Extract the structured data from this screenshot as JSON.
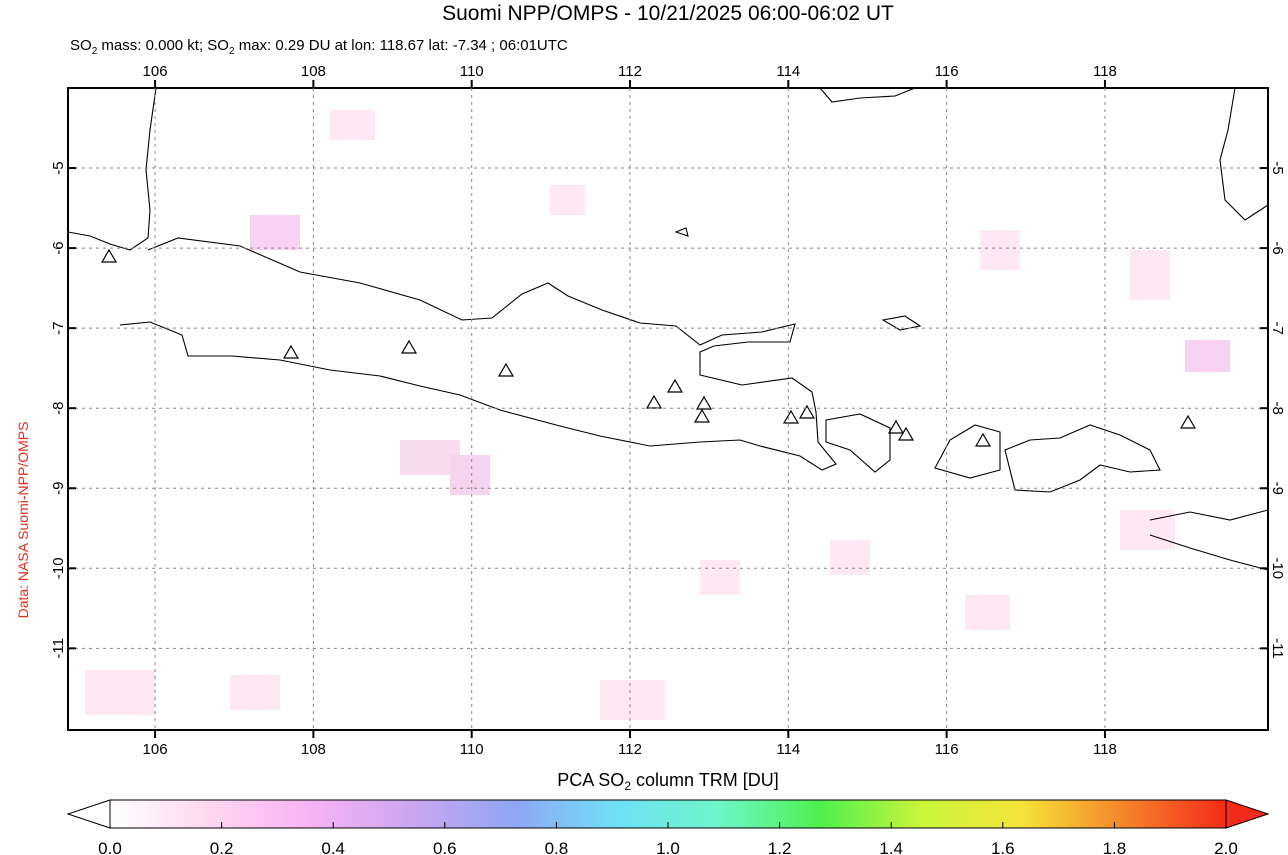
{
  "map": {
    "title": "Suomi NPP/OMPS - 10/21/2025 06:00-06:02 UT",
    "subtitle": [
      "SO",
      "2",
      " mass: 0.000 kt; SO",
      "2",
      " max: 0.29 DU at lon: 118.67 lat: -7.34 ; 06:01UTC"
    ],
    "credit": "Data: NASA Suomi-NPP/OMPS",
    "xlim": [
      104.9,
      120.06
    ],
    "ylim": [
      -12.02,
      -4.0
    ],
    "xticks": [
      106,
      108,
      110,
      112,
      114,
      116,
      118
    ],
    "yticks": [
      -5,
      -6,
      -7,
      -8,
      -9,
      -10,
      -11
    ],
    "grid": true,
    "colorbar": {
      "label": [
        "PCA SO",
        "2",
        " column TRM [DU]"
      ],
      "lim": [
        0,
        2
      ],
      "ticks": [
        {
          "value": 0,
          "label": "0.0"
        },
        0.2,
        0.4,
        0.6,
        0.8,
        {
          "value": 1,
          "label": "1.0"
        },
        1.2,
        1.4,
        1.6,
        1.8,
        {
          "value": 2,
          "label": "2.0"
        }
      ],
      "colors": [
        "#ffffff",
        "#ffd6f0",
        "#f7b2f5",
        "#c9a6f0",
        "#8fa6f5",
        "#6fe0f5",
        "#6ff5c9",
        "#4ef04e",
        "#c9f53a",
        "#f5e23a",
        "#f5842a",
        "#f52a1a"
      ]
    }
  }
}
